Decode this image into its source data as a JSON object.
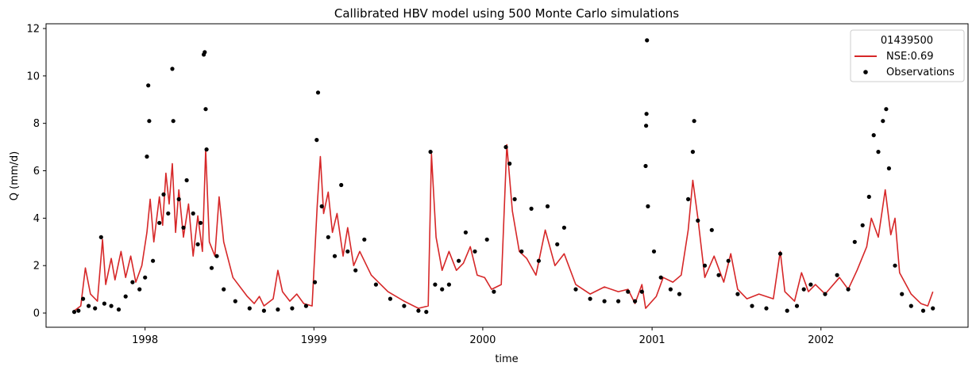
{
  "chart_data": {
    "type": "line",
    "title": "Callibrated HBV model using 500 Monte Carlo simulations",
    "xlabel": "time",
    "ylabel": "Q (mm/d)",
    "xlim": [
      "1997-06-01",
      "2002-11-15"
    ],
    "ylim": [
      -0.6,
      12.2
    ],
    "x_ticks": [
      {
        "date": "1998-01-01",
        "label": "1998"
      },
      {
        "date": "1999-01-01",
        "label": "1999"
      },
      {
        "date": "2000-01-01",
        "label": "2000"
      },
      {
        "date": "2001-01-01",
        "label": "2001"
      },
      {
        "date": "2002-01-01",
        "label": "2002"
      }
    ],
    "y_ticks": [
      0,
      2,
      4,
      6,
      8,
      10,
      12
    ],
    "grid": false,
    "legend": {
      "title": "01439500",
      "position": "top-right",
      "entries": [
        {
          "label": "NSE:0.69",
          "style": "line",
          "color": "#d62728"
        },
        {
          "label": "Observations",
          "style": "marker",
          "color": "#000000"
        }
      ]
    },
    "series": [
      {
        "name": "NSE:0.69",
        "style": "line",
        "color": "#d62728",
        "points": [
          [
            "1997-08-01",
            0.1
          ],
          [
            "1997-08-15",
            0.3
          ],
          [
            "1997-08-25",
            1.9
          ],
          [
            "1997-09-05",
            0.8
          ],
          [
            "1997-09-20",
            0.5
          ],
          [
            "1997-10-01",
            3.1
          ],
          [
            "1997-10-08",
            1.2
          ],
          [
            "1997-10-20",
            2.3
          ],
          [
            "1997-10-28",
            1.4
          ],
          [
            "1997-11-10",
            2.6
          ],
          [
            "1997-11-20",
            1.5
          ],
          [
            "1997-12-01",
            2.4
          ],
          [
            "1997-12-12",
            1.3
          ],
          [
            "1997-12-25",
            2.0
          ],
          [
            "1998-01-05",
            3.4
          ],
          [
            "1998-01-12",
            4.8
          ],
          [
            "1998-01-20",
            3.0
          ],
          [
            "1998-02-01",
            4.9
          ],
          [
            "1998-02-08",
            3.7
          ],
          [
            "1998-02-15",
            5.9
          ],
          [
            "1998-02-22",
            4.6
          ],
          [
            "1998-03-01",
            6.3
          ],
          [
            "1998-03-08",
            3.4
          ],
          [
            "1998-03-15",
            5.2
          ],
          [
            "1998-03-25",
            3.2
          ],
          [
            "1998-04-05",
            4.6
          ],
          [
            "1998-04-15",
            2.4
          ],
          [
            "1998-04-25",
            4.1
          ],
          [
            "1998-05-05",
            2.6
          ],
          [
            "1998-05-12",
            6.9
          ],
          [
            "1998-05-20",
            3.0
          ],
          [
            "1998-06-01",
            2.4
          ],
          [
            "1998-06-10",
            4.9
          ],
          [
            "1998-06-20",
            3.0
          ],
          [
            "1998-07-10",
            1.5
          ],
          [
            "1998-08-10",
            0.7
          ],
          [
            "1998-08-25",
            0.4
          ],
          [
            "1998-09-05",
            0.7
          ],
          [
            "1998-09-15",
            0.3
          ],
          [
            "1998-10-05",
            0.6
          ],
          [
            "1998-10-15",
            1.8
          ],
          [
            "1998-10-25",
            0.9
          ],
          [
            "1998-11-10",
            0.5
          ],
          [
            "1998-11-25",
            0.8
          ],
          [
            "1998-12-10",
            0.4
          ],
          [
            "1998-12-28",
            0.3
          ],
          [
            "1999-01-08",
            4.5
          ],
          [
            "1999-01-15",
            6.6
          ],
          [
            "1999-01-22",
            4.2
          ],
          [
            "1999-02-01",
            5.1
          ],
          [
            "1999-02-10",
            3.4
          ],
          [
            "1999-02-20",
            4.2
          ],
          [
            "1999-03-05",
            2.4
          ],
          [
            "1999-03-15",
            3.6
          ],
          [
            "1999-03-28",
            2.0
          ],
          [
            "1999-04-10",
            2.6
          ],
          [
            "1999-05-05",
            1.6
          ],
          [
            "1999-06-10",
            0.9
          ],
          [
            "1999-07-15",
            0.5
          ],
          [
            "1999-08-15",
            0.2
          ],
          [
            "1999-09-05",
            0.3
          ],
          [
            "1999-09-12",
            6.7
          ],
          [
            "1999-09-22",
            3.2
          ],
          [
            "1999-10-05",
            1.8
          ],
          [
            "1999-10-20",
            2.6
          ],
          [
            "1999-11-05",
            1.8
          ],
          [
            "1999-11-20",
            2.1
          ],
          [
            "1999-12-05",
            2.8
          ],
          [
            "1999-12-20",
            1.6
          ],
          [
            "2000-01-05",
            1.5
          ],
          [
            "2000-01-20",
            1.0
          ],
          [
            "2000-02-10",
            1.2
          ],
          [
            "2000-02-22",
            7.1
          ],
          [
            "2000-03-05",
            4.3
          ],
          [
            "2000-03-20",
            2.6
          ],
          [
            "2000-04-05",
            2.3
          ],
          [
            "2000-04-25",
            1.6
          ],
          [
            "2000-05-15",
            3.5
          ],
          [
            "2000-06-05",
            2.0
          ],
          [
            "2000-06-25",
            2.5
          ],
          [
            "2000-07-20",
            1.2
          ],
          [
            "2000-08-20",
            0.8
          ],
          [
            "2000-09-20",
            1.1
          ],
          [
            "2000-10-20",
            0.9
          ],
          [
            "2000-11-10",
            1.0
          ],
          [
            "2000-11-25",
            0.4
          ],
          [
            "2000-12-10",
            1.2
          ],
          [
            "2000-12-18",
            0.2
          ],
          [
            "2001-01-10",
            0.7
          ],
          [
            "2001-01-25",
            1.5
          ],
          [
            "2001-02-15",
            1.3
          ],
          [
            "2001-03-05",
            1.6
          ],
          [
            "2001-03-20",
            3.5
          ],
          [
            "2001-03-30",
            5.6
          ],
          [
            "2001-04-10",
            4.0
          ],
          [
            "2001-04-25",
            1.5
          ],
          [
            "2001-05-15",
            2.4
          ],
          [
            "2001-06-05",
            1.3
          ],
          [
            "2001-06-20",
            2.5
          ],
          [
            "2001-07-05",
            1.0
          ],
          [
            "2001-07-25",
            0.6
          ],
          [
            "2001-08-20",
            0.8
          ],
          [
            "2001-09-20",
            0.6
          ],
          [
            "2001-10-05",
            2.6
          ],
          [
            "2001-10-15",
            0.9
          ],
          [
            "2001-11-05",
            0.5
          ],
          [
            "2001-11-20",
            1.7
          ],
          [
            "2001-12-05",
            0.9
          ],
          [
            "2001-12-20",
            1.2
          ],
          [
            "2002-01-10",
            0.8
          ],
          [
            "2002-02-10",
            1.5
          ],
          [
            "2002-03-01",
            1.0
          ],
          [
            "2002-03-20",
            1.8
          ],
          [
            "2002-04-10",
            2.8
          ],
          [
            "2002-04-20",
            4.0
          ],
          [
            "2002-05-05",
            3.2
          ],
          [
            "2002-05-20",
            5.2
          ],
          [
            "2002-06-01",
            3.3
          ],
          [
            "2002-06-10",
            4.0
          ],
          [
            "2002-06-20",
            1.7
          ],
          [
            "2002-07-15",
            0.8
          ],
          [
            "2002-08-05",
            0.4
          ],
          [
            "2002-08-20",
            0.3
          ],
          [
            "2002-08-31",
            0.9
          ]
        ]
      },
      {
        "name": "Observations",
        "style": "marker",
        "color": "#000000",
        "points": [
          [
            "1997-08-01",
            0.05
          ],
          [
            "1997-08-10",
            0.1
          ],
          [
            "1997-08-20",
            0.6
          ],
          [
            "1997-09-01",
            0.3
          ],
          [
            "1997-09-15",
            0.2
          ],
          [
            "1997-09-28",
            3.2
          ],
          [
            "1997-10-05",
            0.4
          ],
          [
            "1997-10-20",
            0.3
          ],
          [
            "1997-11-05",
            0.15
          ],
          [
            "1997-11-20",
            0.7
          ],
          [
            "1997-12-05",
            1.3
          ],
          [
            "1997-12-20",
            1.0
          ],
          [
            "1998-01-01",
            1.5
          ],
          [
            "1998-01-05",
            6.6
          ],
          [
            "1998-01-08",
            9.6
          ],
          [
            "1998-01-10",
            8.1
          ],
          [
            "1998-01-18",
            2.2
          ],
          [
            "1998-02-01",
            3.8
          ],
          [
            "1998-02-10",
            5.0
          ],
          [
            "1998-02-20",
            4.2
          ],
          [
            "1998-03-01",
            10.3
          ],
          [
            "1998-03-03",
            8.1
          ],
          [
            "1998-03-15",
            4.8
          ],
          [
            "1998-03-25",
            3.6
          ],
          [
            "1998-04-01",
            5.6
          ],
          [
            "1998-04-15",
            4.2
          ],
          [
            "1998-04-25",
            2.9
          ],
          [
            "1998-05-01",
            3.8
          ],
          [
            "1998-05-08",
            10.9
          ],
          [
            "1998-05-10",
            11.0
          ],
          [
            "1998-05-12",
            8.6
          ],
          [
            "1998-05-14",
            6.9
          ],
          [
            "1998-05-25",
            1.9
          ],
          [
            "1998-06-05",
            2.4
          ],
          [
            "1998-06-20",
            1.0
          ],
          [
            "1998-07-15",
            0.5
          ],
          [
            "1998-08-15",
            0.2
          ],
          [
            "1998-09-15",
            0.1
          ],
          [
            "1998-10-15",
            0.15
          ],
          [
            "1998-11-15",
            0.2
          ],
          [
            "1998-12-15",
            0.3
          ],
          [
            "1999-01-03",
            1.3
          ],
          [
            "1999-01-07",
            7.3
          ],
          [
            "1999-01-10",
            9.3
          ],
          [
            "1999-01-18",
            4.5
          ],
          [
            "1999-02-01",
            3.2
          ],
          [
            "1999-02-15",
            2.4
          ],
          [
            "1999-03-01",
            5.4
          ],
          [
            "1999-03-15",
            2.6
          ],
          [
            "1999-04-01",
            1.8
          ],
          [
            "1999-04-20",
            3.1
          ],
          [
            "1999-05-15",
            1.2
          ],
          [
            "1999-06-15",
            0.6
          ],
          [
            "1999-07-15",
            0.3
          ],
          [
            "1999-08-15",
            0.1
          ],
          [
            "1999-09-01",
            0.05
          ],
          [
            "1999-09-10",
            6.8
          ],
          [
            "1999-09-20",
            1.2
          ],
          [
            "1999-10-05",
            1.0
          ],
          [
            "1999-10-20",
            1.2
          ],
          [
            "1999-11-10",
            2.2
          ],
          [
            "1999-11-25",
            3.4
          ],
          [
            "1999-12-15",
            2.6
          ],
          [
            "2000-01-10",
            3.1
          ],
          [
            "2000-01-25",
            0.9
          ],
          [
            "2000-02-20",
            7.0
          ],
          [
            "2000-02-28",
            6.3
          ],
          [
            "2000-03-10",
            4.8
          ],
          [
            "2000-03-25",
            2.6
          ],
          [
            "2000-04-15",
            4.4
          ],
          [
            "2000-05-01",
            2.2
          ],
          [
            "2000-05-20",
            4.5
          ],
          [
            "2000-06-10",
            2.9
          ],
          [
            "2000-06-25",
            3.6
          ],
          [
            "2000-07-20",
            1.0
          ],
          [
            "2000-08-20",
            0.6
          ],
          [
            "2000-09-20",
            0.5
          ],
          [
            "2000-10-20",
            0.5
          ],
          [
            "2000-11-10",
            0.9
          ],
          [
            "2000-11-25",
            0.5
          ],
          [
            "2000-12-10",
            0.9
          ],
          [
            "2000-12-18",
            6.2
          ],
          [
            "2000-12-19",
            7.9
          ],
          [
            "2000-12-20",
            8.4
          ],
          [
            "2000-12-21",
            11.5
          ],
          [
            "2000-12-23",
            4.5
          ],
          [
            "2001-01-05",
            2.6
          ],
          [
            "2001-01-20",
            1.5
          ],
          [
            "2001-02-10",
            1.0
          ],
          [
            "2001-03-01",
            0.8
          ],
          [
            "2001-03-20",
            4.8
          ],
          [
            "2001-03-30",
            6.8
          ],
          [
            "2001-04-02",
            8.1
          ],
          [
            "2001-04-10",
            3.9
          ],
          [
            "2001-04-25",
            2.0
          ],
          [
            "2001-05-10",
            3.5
          ],
          [
            "2001-05-25",
            1.6
          ],
          [
            "2001-06-15",
            2.2
          ],
          [
            "2001-07-05",
            0.8
          ],
          [
            "2001-08-05",
            0.3
          ],
          [
            "2001-09-05",
            0.2
          ],
          [
            "2001-10-05",
            2.5
          ],
          [
            "2001-10-20",
            0.1
          ],
          [
            "2001-11-10",
            0.3
          ],
          [
            "2001-11-25",
            1.0
          ],
          [
            "2001-12-10",
            1.2
          ],
          [
            "2002-01-10",
            0.8
          ],
          [
            "2002-02-05",
            1.6
          ],
          [
            "2002-03-01",
            1.0
          ],
          [
            "2002-03-15",
            3.0
          ],
          [
            "2002-04-01",
            3.7
          ],
          [
            "2002-04-15",
            4.9
          ],
          [
            "2002-04-25",
            7.5
          ],
          [
            "2002-05-05",
            6.8
          ],
          [
            "2002-05-15",
            8.1
          ],
          [
            "2002-05-22",
            8.6
          ],
          [
            "2002-05-28",
            6.1
          ],
          [
            "2002-06-10",
            2.0
          ],
          [
            "2002-06-25",
            0.8
          ],
          [
            "2002-07-15",
            0.3
          ],
          [
            "2002-08-10",
            0.1
          ],
          [
            "2002-08-31",
            0.2
          ]
        ]
      }
    ]
  }
}
